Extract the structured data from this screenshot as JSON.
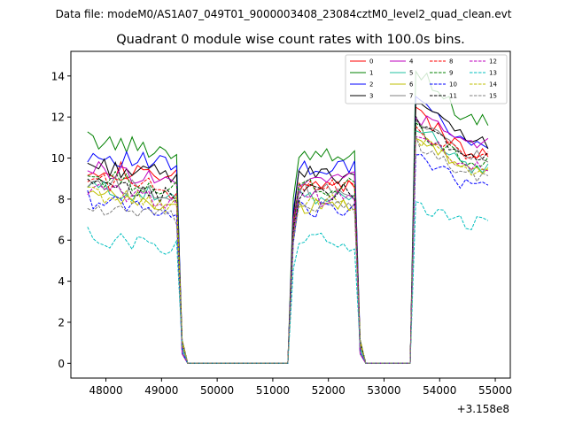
{
  "suptitle": "Data file: modeM0/AS1A07_049T01_9000003408_23084cztM0_level2_quad_clean.evt",
  "chart_data": {
    "type": "line",
    "title": "Quadrant 0 module wise count rates with 100.0s bins.",
    "xlabel": "",
    "ylabel": "",
    "x_offset_label": "+3.158e8",
    "xlim": [
      47370,
      55270
    ],
    "ylim": [
      -0.72,
      15.2
    ],
    "x_ticks": [
      48000,
      49000,
      50000,
      51000,
      52000,
      53000,
      54000,
      55000
    ],
    "x_tick_labels": [
      "48000",
      "49000",
      "50000",
      "51000",
      "52000",
      "53000",
      "54000",
      "55000"
    ],
    "y_ticks": [
      0,
      2,
      4,
      6,
      8,
      10,
      12,
      14
    ],
    "y_tick_labels": [
      "0",
      "2",
      "4",
      "6",
      "8",
      "10",
      "12",
      "14"
    ],
    "legend_position": "top-right",
    "legend_columns": 4,
    "segments": [
      {
        "x_start": 47670,
        "x_end": 49270,
        "drop_x": [
          49370,
          49470
        ]
      },
      {
        "x_start": 51370,
        "x_end": 52470,
        "drop_x": [
          52570,
          52670
        ]
      },
      {
        "x_start": 53570,
        "x_end": 54870,
        "drop_x": []
      }
    ],
    "gap_zero_x": [
      49470,
      49570,
      49670,
      49770,
      49870,
      49970,
      50070,
      50170,
      50270,
      50370,
      50470,
      50570,
      50670,
      50770,
      50870,
      50970,
      51070,
      51170,
      51270,
      52670,
      52770,
      52870,
      52970,
      53070,
      53170,
      53270,
      53370,
      53470
    ],
    "series": [
      {
        "name": "0",
        "color": "#ff0000",
        "dashed": false,
        "level": [
          9.3,
          8.7,
          10.3
        ],
        "peak": 12.2
      },
      {
        "name": "1",
        "color": "#008000",
        "dashed": false,
        "level": [
          10.6,
          10.3,
          11.8
        ],
        "peak": 14.4
      },
      {
        "name": "2",
        "color": "#0000ff",
        "dashed": false,
        "level": [
          9.9,
          9.5,
          10.5
        ],
        "peak": 13.3
      },
      {
        "name": "3",
        "color": "#000000",
        "dashed": false,
        "level": [
          9.4,
          9.2,
          10.8
        ],
        "peak": 12.7
      },
      {
        "name": "4",
        "color": "#bf00bf",
        "dashed": false,
        "level": [
          9.2,
          9.0,
          10.7
        ],
        "peak": 12.1
      },
      {
        "name": "5",
        "color": "#20c0a0",
        "dashed": false,
        "level": [
          8.3,
          8.1,
          9.6
        ],
        "peak": 11.6
      },
      {
        "name": "6",
        "color": "#bfbf00",
        "dashed": false,
        "level": [
          7.9,
          7.7,
          9.3
        ],
        "peak": 11.2
      },
      {
        "name": "7",
        "color": "#808080",
        "dashed": false,
        "level": [
          8.6,
          8.4,
          10.1
        ],
        "peak": 11.9
      },
      {
        "name": "8",
        "color": "#ff0000",
        "dashed": true,
        "level": [
          8.7,
          8.5,
          10.0
        ],
        "peak": 11.5
      },
      {
        "name": "9",
        "color": "#008000",
        "dashed": true,
        "level": [
          8.8,
          8.6,
          9.8
        ],
        "peak": 11.4
      },
      {
        "name": "10",
        "color": "#0000ff",
        "dashed": true,
        "level": [
          7.7,
          7.5,
          8.6
        ],
        "peak": 10.2
      },
      {
        "name": "11",
        "color": "#000000",
        "dashed": true,
        "level": [
          8.4,
          8.3,
          10.0
        ],
        "peak": 11.8
      },
      {
        "name": "12",
        "color": "#bf00bf",
        "dashed": true,
        "level": [
          8.2,
          8.0,
          9.6
        ],
        "peak": 11.1
      },
      {
        "name": "13",
        "color": "#00bfbf",
        "dashed": true,
        "level": [
          5.9,
          5.9,
          6.8
        ],
        "peak": 7.8
      },
      {
        "name": "14",
        "color": "#bfbf00",
        "dashed": true,
        "level": [
          8.0,
          7.8,
          9.5
        ],
        "peak": 11.0
      },
      {
        "name": "15",
        "color": "#808080",
        "dashed": true,
        "level": [
          7.3,
          7.6,
          9.2
        ],
        "peak": 10.8
      }
    ]
  }
}
